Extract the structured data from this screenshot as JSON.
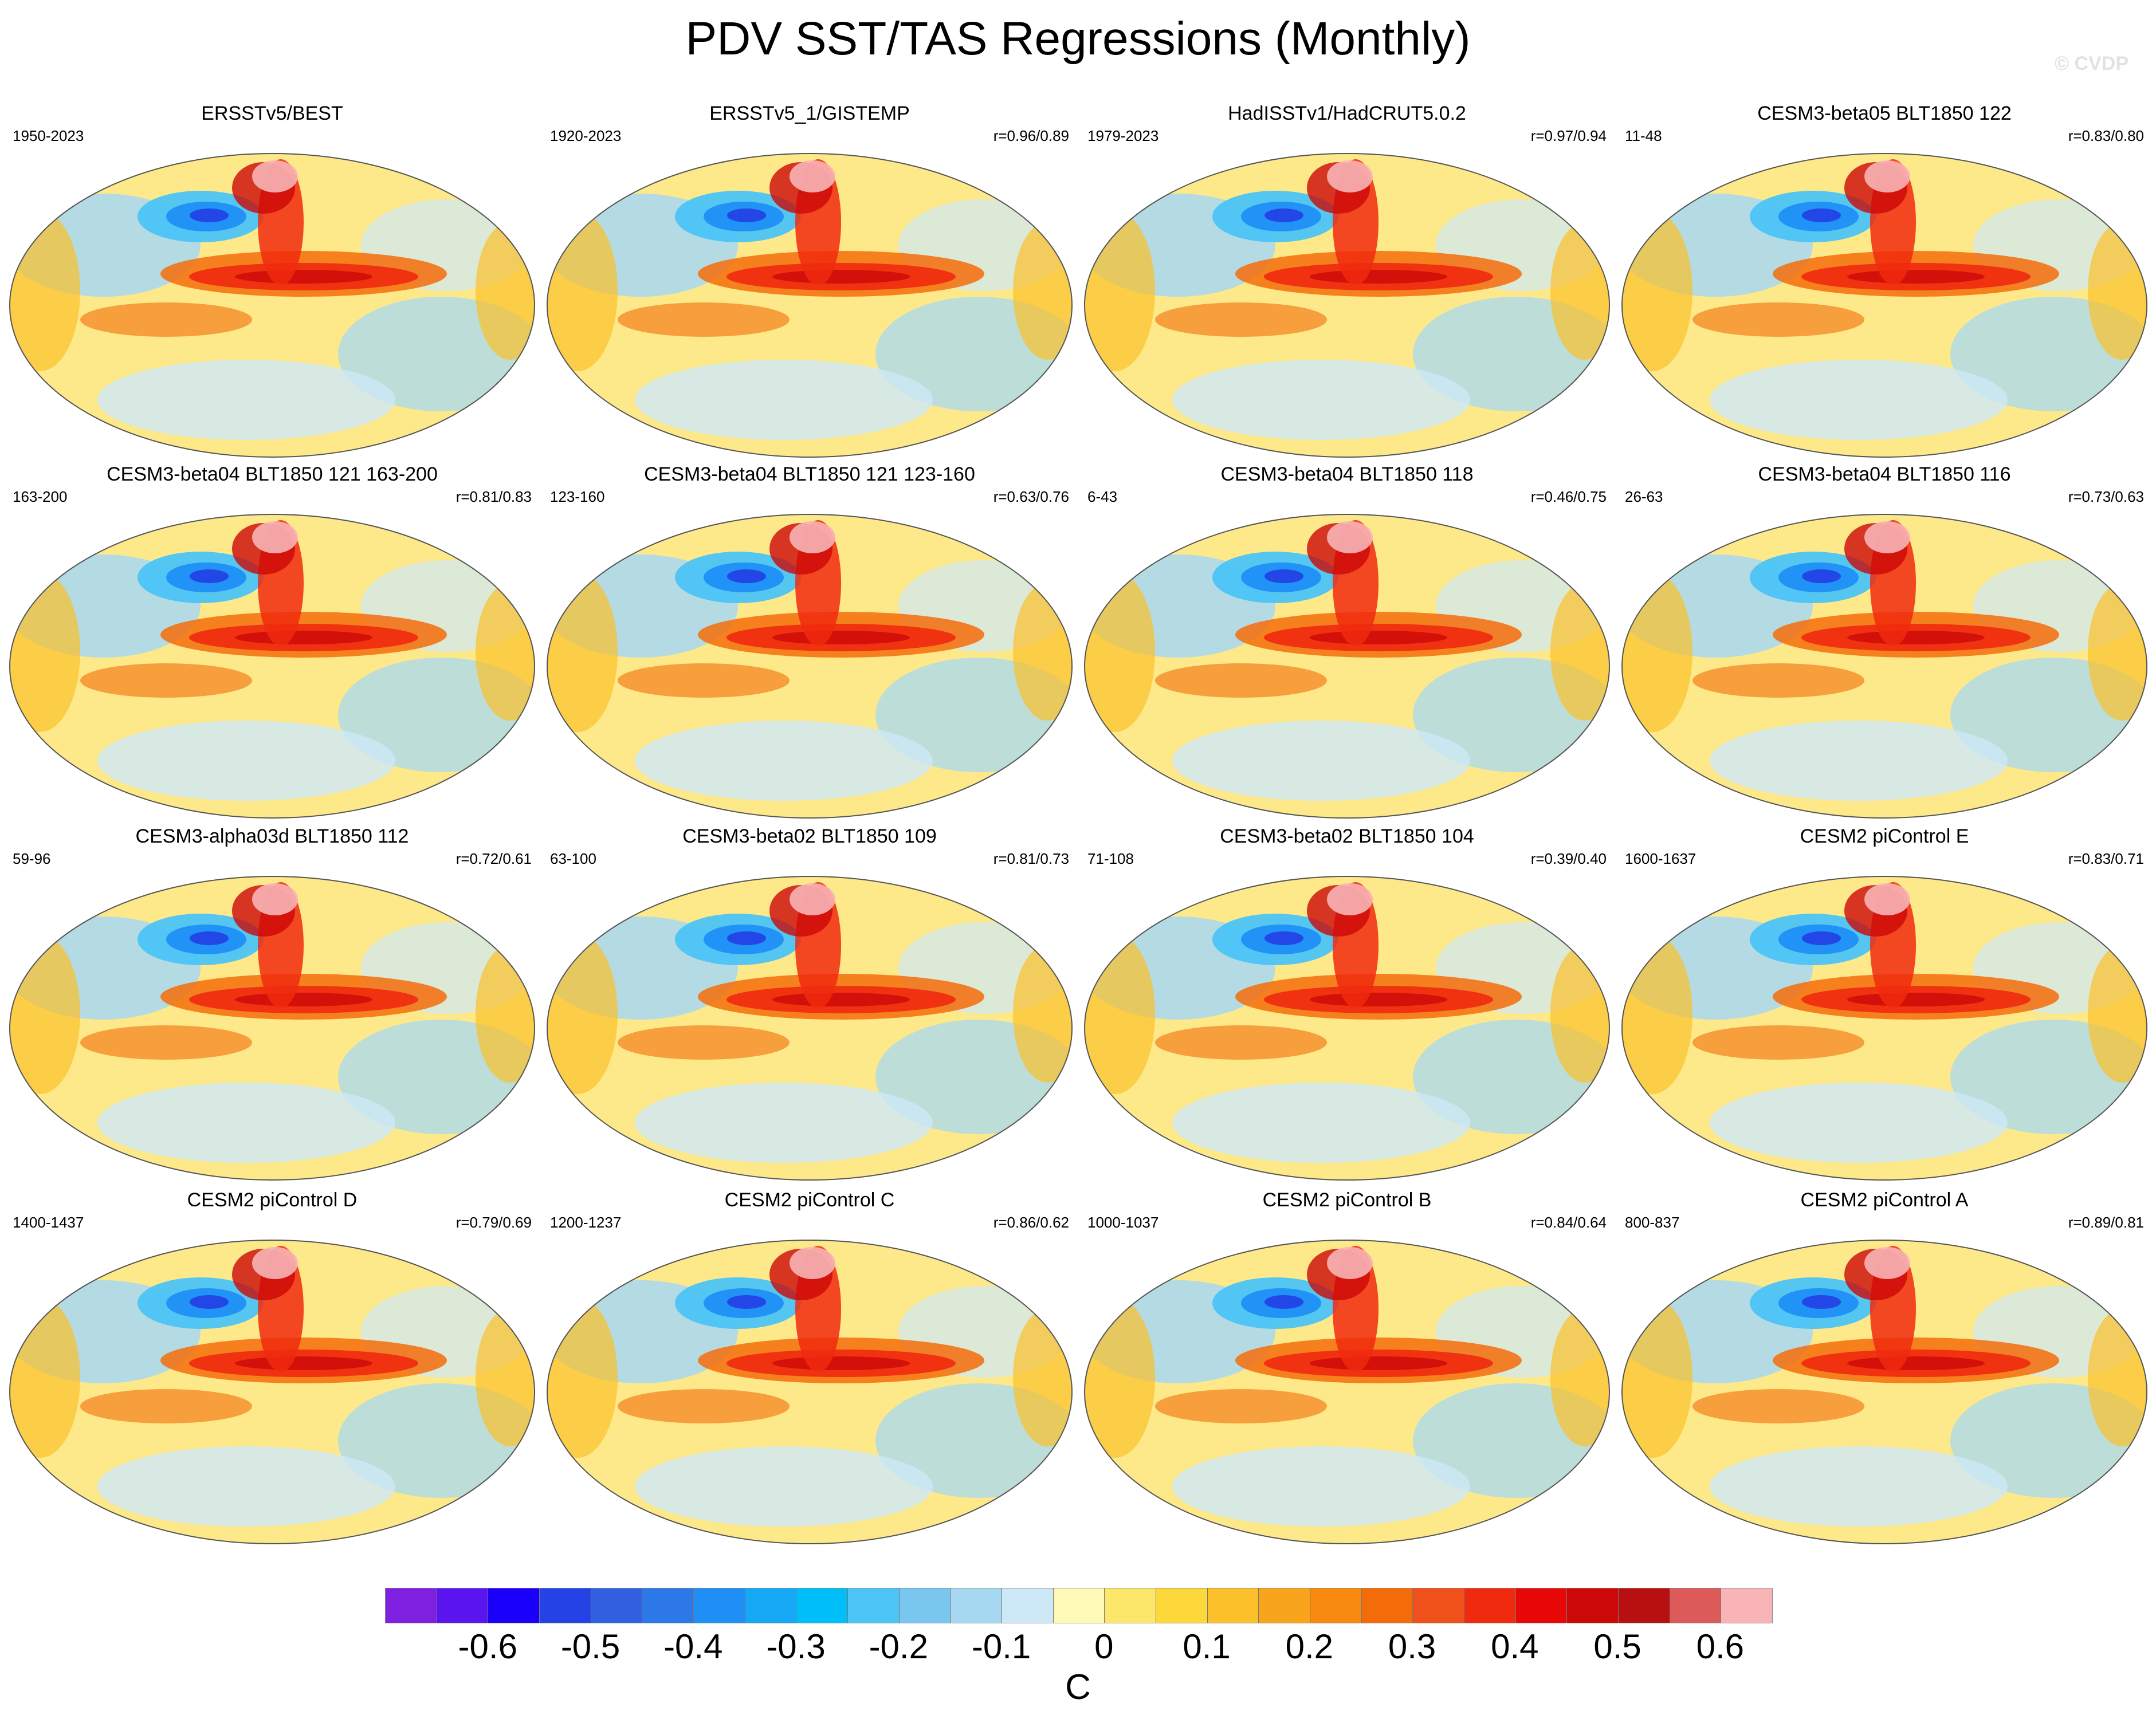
{
  "figure": {
    "title": "PDV SST/TAS Regressions (Monthly)",
    "watermark": "© CVDP"
  },
  "panels": [
    {
      "title": "ERSSTv5/BEST",
      "period": "1950-2023",
      "r": ""
    },
    {
      "title": "ERSSTv5_1/GISTEMP",
      "period": "1920-2023",
      "r": "r=0.96/0.89"
    },
    {
      "title": "HadISSTv1/HadCRUT5.0.2",
      "period": "1979-2023",
      "r": "r=0.97/0.94"
    },
    {
      "title": "CESM3-beta05 BLT1850 122",
      "period": "11-48",
      "r": "r=0.83/0.80"
    },
    {
      "title": "CESM3-beta04 BLT1850 121 163-200",
      "period": "163-200",
      "r": "r=0.81/0.83"
    },
    {
      "title": "CESM3-beta04 BLT1850 121 123-160",
      "period": "123-160",
      "r": "r=0.63/0.76"
    },
    {
      "title": "CESM3-beta04 BLT1850 118",
      "period": "6-43",
      "r": "r=0.46/0.75"
    },
    {
      "title": "CESM3-beta04 BLT1850 116",
      "period": "26-63",
      "r": "r=0.73/0.63"
    },
    {
      "title": "CESM3-alpha03d BLT1850 112",
      "period": "59-96",
      "r": "r=0.72/0.61"
    },
    {
      "title": "CESM3-beta02 BLT1850 109",
      "period": "63-100",
      "r": "r=0.81/0.73"
    },
    {
      "title": "CESM3-beta02 BLT1850 104",
      "period": "71-108",
      "r": "r=0.39/0.40"
    },
    {
      "title": "CESM2 piControl E",
      "period": "1600-1637",
      "r": "r=0.83/0.71"
    },
    {
      "title": "CESM2 piControl D",
      "period": "1400-1437",
      "r": "r=0.79/0.69"
    },
    {
      "title": "CESM2 piControl C",
      "period": "1200-1237",
      "r": "r=0.86/0.62"
    },
    {
      "title": "CESM2 piControl B",
      "period": "1000-1037",
      "r": "r=0.84/0.64"
    },
    {
      "title": "CESM2 piControl A",
      "period": "800-837",
      "r": "r=0.89/0.81"
    }
  ],
  "colorbar": {
    "colors": [
      "#7f1fe0",
      "#5a14f0",
      "#1a00fa",
      "#2442e6",
      "#3360e0",
      "#2d78e8",
      "#1f8ff5",
      "#14a8f5",
      "#00bef8",
      "#4cc4f5",
      "#79c7ef",
      "#a7d8f2",
      "#cde8f7",
      "#fff9b8",
      "#fde76a",
      "#fdd83a",
      "#fbc02a",
      "#f9a51c",
      "#f88a0f",
      "#f46c0a",
      "#f0501a",
      "#f02a0e",
      "#e80808",
      "#cc0808",
      "#b81010",
      "#dc5a5a",
      "#f8b4b6"
    ],
    "ticks": [
      "-0.6",
      "-0.5",
      "-0.4",
      "-0.3",
      "-0.2",
      "-0.1",
      "0",
      "0.1",
      "0.2",
      "0.3",
      "0.4",
      "0.5",
      "0.6"
    ],
    "unit": "C"
  }
}
